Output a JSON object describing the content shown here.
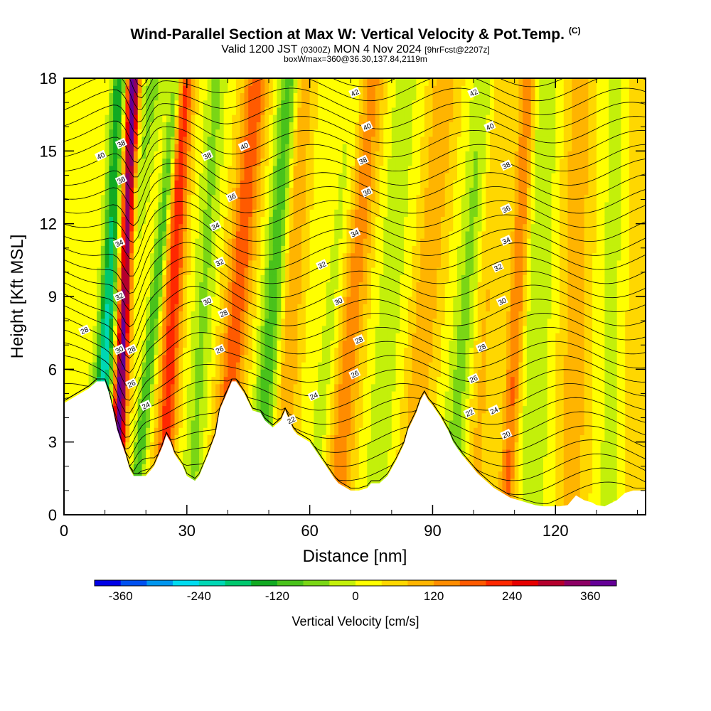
{
  "header": {
    "title": "Wind-Parallel Section at Max W: Vertical Velocity & Pot.Temp.",
    "copyright": "(C)",
    "valid_prefix": "Valid 1200 JST",
    "valid_utc": "(0300Z)",
    "valid_date": "MON 4 Nov 2024",
    "forecast": "[9hrFcst@2207z]",
    "box_info": "boxWmax=360@36.30,137.84,2119m"
  },
  "chart_data": {
    "type": "heatmap",
    "xlabel": "Distance [nm]",
    "ylabel": "Height [Kft MSL]",
    "xlim": [
      0,
      142
    ],
    "ylim": [
      0,
      18
    ],
    "x_ticks": [
      0,
      30,
      60,
      90,
      120
    ],
    "y_ticks": [
      0,
      3,
      6,
      9,
      12,
      15,
      18
    ],
    "colorbar": {
      "title": "Vertical Velocity [cm/s]",
      "min": -400,
      "max": 400,
      "step": 40,
      "tick_values": [
        -360,
        -240,
        -120,
        0,
        120,
        240,
        360
      ],
      "tick_labels": [
        "-360",
        "-240",
        "-120",
        "0",
        "120",
        "240",
        "360"
      ],
      "colors": [
        "#0000e6",
        "#0050f0",
        "#0096ef",
        "#00dcf0",
        "#00d7b4",
        "#00c86e",
        "#11aa22",
        "#49c21b",
        "#7ad615",
        "#c3f00a",
        "#ffff00",
        "#ffd700",
        "#ffb400",
        "#ff8c00",
        "#ff5a00",
        "#ff2800",
        "#e60000",
        "#b4002d",
        "#8c0064",
        "#640096"
      ]
    },
    "terrain_profile_kft": [
      [
        0,
        4.6
      ],
      [
        2,
        4.8
      ],
      [
        4,
        5.0
      ],
      [
        6,
        5.2
      ],
      [
        8,
        5.5
      ],
      [
        10,
        5.5
      ],
      [
        11,
        5.0
      ],
      [
        12,
        4.3
      ],
      [
        13,
        3.5
      ],
      [
        14,
        3.0
      ],
      [
        15,
        2.5
      ],
      [
        16,
        1.9
      ],
      [
        17,
        1.6
      ],
      [
        20,
        1.6
      ],
      [
        22,
        2.0
      ],
      [
        24,
        2.8
      ],
      [
        25,
        3.3
      ],
      [
        26,
        3.0
      ],
      [
        27,
        2.5
      ],
      [
        29,
        2.0
      ],
      [
        30,
        1.6
      ],
      [
        32,
        1.4
      ],
      [
        33,
        1.6
      ],
      [
        35,
        2.4
      ],
      [
        37,
        3.3
      ],
      [
        38,
        4.3
      ],
      [
        40,
        5.1
      ],
      [
        41,
        5.5
      ],
      [
        42,
        5.5
      ],
      [
        44,
        5.0
      ],
      [
        46,
        4.3
      ],
      [
        48,
        4.2
      ],
      [
        49,
        3.9
      ],
      [
        51,
        3.6
      ],
      [
        53,
        3.9
      ],
      [
        54,
        4.3
      ],
      [
        55,
        3.9
      ],
      [
        56,
        3.5
      ],
      [
        57,
        3.3
      ],
      [
        59,
        3.1
      ],
      [
        60,
        3.0
      ],
      [
        62,
        2.5
      ],
      [
        64,
        2.0
      ],
      [
        66,
        1.5
      ],
      [
        67,
        1.3
      ],
      [
        69,
        1.1
      ],
      [
        70,
        1.0
      ],
      [
        72,
        1.0
      ],
      [
        74,
        1.1
      ],
      [
        75,
        1.3
      ],
      [
        77,
        1.3
      ],
      [
        79,
        1.6
      ],
      [
        81,
        2.2
      ],
      [
        83,
        2.9
      ],
      [
        84,
        3.5
      ],
      [
        86,
        4.2
      ],
      [
        87,
        4.7
      ],
      [
        88,
        5.0
      ],
      [
        89,
        4.7
      ],
      [
        90,
        4.5
      ],
      [
        92,
        4.0
      ],
      [
        94,
        3.4
      ],
      [
        95,
        3.0
      ],
      [
        97,
        2.5
      ],
      [
        99,
        2.1
      ],
      [
        101,
        1.7
      ],
      [
        103,
        1.4
      ],
      [
        105,
        1.1
      ],
      [
        107,
        0.9
      ],
      [
        109,
        0.7
      ],
      [
        111,
        0.6
      ],
      [
        113,
        0.5
      ],
      [
        115,
        0.4
      ],
      [
        117,
        0.35
      ],
      [
        119,
        0.35
      ],
      [
        121,
        0.35
      ],
      [
        123,
        0.4
      ],
      [
        124,
        0.6
      ],
      [
        125,
        0.8
      ],
      [
        127,
        0.6
      ],
      [
        129,
        0.5
      ],
      [
        130,
        0.4
      ],
      [
        132,
        0.35
      ],
      [
        135,
        0.6
      ],
      [
        137,
        0.9
      ],
      [
        139,
        1.0
      ],
      [
        141,
        1.0
      ]
    ],
    "w_bands": [
      {
        "x_base": 4,
        "tilt": 1.0,
        "w": -80,
        "width": 3.5
      },
      {
        "x_base": 8,
        "tilt": 0.3,
        "w": -180,
        "width": 1.8
      },
      {
        "x_base": 12.5,
        "tilt": 0.25,
        "w": 380,
        "width": 1.6
      },
      {
        "x_base": 17,
        "tilt": 0.6,
        "w": -150,
        "width": 1.5
      },
      {
        "x_base": 24,
        "tilt": 0.3,
        "w": 200,
        "width": 2.2
      },
      {
        "x_base": 31,
        "tilt": 0.35,
        "w": -80,
        "width": 2.5
      },
      {
        "x_base": 38,
        "tilt": 0.5,
        "w": 160,
        "width": 3.0
      },
      {
        "x_base": 47,
        "tilt": 0.45,
        "w": -140,
        "width": 2.5
      },
      {
        "x_base": 53,
        "tilt": 0.3,
        "w": 90,
        "width": 2.5
      },
      {
        "x_base": 61,
        "tilt": 0.6,
        "w": -60,
        "width": 3.0
      },
      {
        "x_base": 66,
        "tilt": 0.5,
        "w": 120,
        "width": 3.5
      },
      {
        "x_base": 76,
        "tilt": 0.4,
        "w": -50,
        "width": 4.0
      },
      {
        "x_base": 84,
        "tilt": 0.5,
        "w": 80,
        "width": 3.5
      },
      {
        "x_base": 94,
        "tilt": 0.5,
        "w": -90,
        "width": 3.0
      },
      {
        "x_base": 100,
        "tilt": 0.3,
        "w": 60,
        "width": 3.0
      },
      {
        "x_base": 108,
        "tilt": 0.3,
        "w": 140,
        "width": 2.0
      },
      {
        "x_base": 114,
        "tilt": 0.2,
        "w": -60,
        "width": 4.0
      },
      {
        "x_base": 124,
        "tilt": 0.1,
        "w": 70,
        "width": 4.0
      },
      {
        "x_base": 133,
        "tilt": 0.1,
        "w": -40,
        "width": 4.0
      },
      {
        "x_base": 139,
        "tilt": 0.1,
        "w": 50,
        "width": 3.0
      }
    ],
    "theta_contour_labels": [
      {
        "text": "40",
        "x": 9,
        "y": 14.8
      },
      {
        "text": "38",
        "x": 14,
        "y": 15.3
      },
      {
        "text": "36",
        "x": 14,
        "y": 13.8
      },
      {
        "text": "34",
        "x": 13.5,
        "y": 11.2
      },
      {
        "text": "32",
        "x": 13.5,
        "y": 9.0
      },
      {
        "text": "30",
        "x": 13.5,
        "y": 6.8
      },
      {
        "text": "28",
        "x": 5,
        "y": 7.6
      },
      {
        "text": "28",
        "x": 16.5,
        "y": 6.8
      },
      {
        "text": "26",
        "x": 16.5,
        "y": 5.4
      },
      {
        "text": "24",
        "x": 20,
        "y": 4.5
      },
      {
        "text": "38",
        "x": 35,
        "y": 14.8
      },
      {
        "text": "40",
        "x": 44,
        "y": 15.2
      },
      {
        "text": "36",
        "x": 41,
        "y": 13.1
      },
      {
        "text": "34",
        "x": 37,
        "y": 11.9
      },
      {
        "text": "32",
        "x": 38,
        "y": 10.4
      },
      {
        "text": "30",
        "x": 35,
        "y": 8.8
      },
      {
        "text": "28",
        "x": 39,
        "y": 8.3
      },
      {
        "text": "26",
        "x": 38,
        "y": 6.8
      },
      {
        "text": "42",
        "x": 71,
        "y": 17.4
      },
      {
        "text": "40",
        "x": 74,
        "y": 16.0
      },
      {
        "text": "38",
        "x": 73,
        "y": 14.6
      },
      {
        "text": "36",
        "x": 74,
        "y": 13.3
      },
      {
        "text": "34",
        "x": 71,
        "y": 11.6
      },
      {
        "text": "32",
        "x": 63,
        "y": 10.3
      },
      {
        "text": "30",
        "x": 67,
        "y": 8.8
      },
      {
        "text": "28",
        "x": 72,
        "y": 7.2
      },
      {
        "text": "26",
        "x": 71,
        "y": 5.8
      },
      {
        "text": "24",
        "x": 61,
        "y": 4.9
      },
      {
        "text": "22",
        "x": 55.5,
        "y": 3.9
      },
      {
        "text": "42",
        "x": 100,
        "y": 17.4
      },
      {
        "text": "40",
        "x": 104,
        "y": 16.0
      },
      {
        "text": "38",
        "x": 108,
        "y": 14.4
      },
      {
        "text": "36",
        "x": 108,
        "y": 12.6
      },
      {
        "text": "34",
        "x": 108,
        "y": 11.3
      },
      {
        "text": "32",
        "x": 106,
        "y": 10.2
      },
      {
        "text": "30",
        "x": 107,
        "y": 8.8
      },
      {
        "text": "28",
        "x": 102,
        "y": 6.9
      },
      {
        "text": "26",
        "x": 100,
        "y": 5.6
      },
      {
        "text": "24",
        "x": 105,
        "y": 4.3
      },
      {
        "text": "22",
        "x": 99,
        "y": 4.2
      },
      {
        "text": "20",
        "x": 108,
        "y": 3.3
      }
    ]
  }
}
